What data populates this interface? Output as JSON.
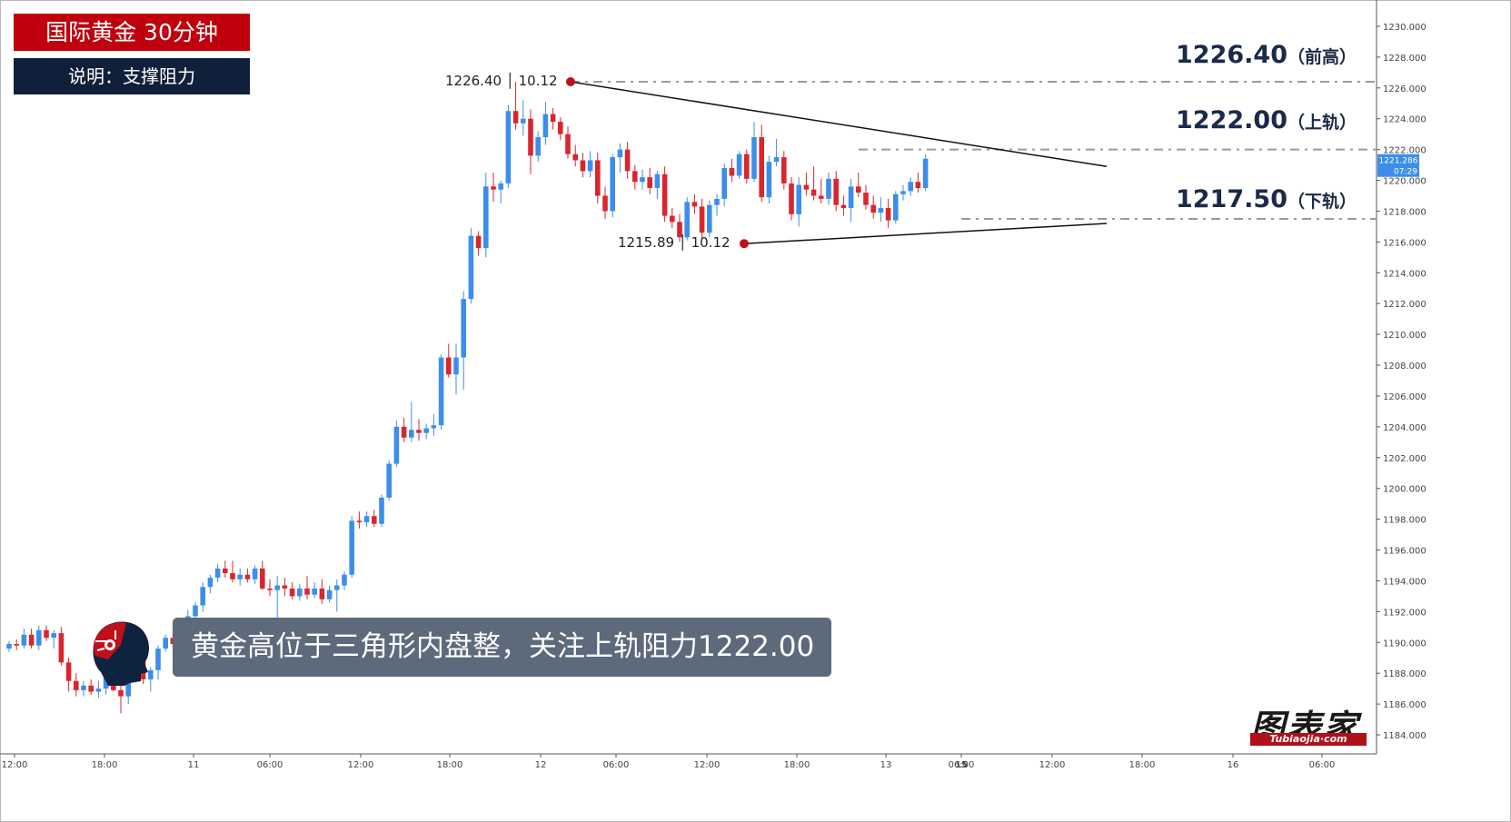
{
  "header": {
    "title": "国际黄金 30分钟",
    "subtitle": "说明：支撑阻力"
  },
  "levels": [
    {
      "price": "1226.40",
      "tag": "（前高）",
      "value": 1226.4
    },
    {
      "price": "1222.00",
      "tag": "（上轨）",
      "value": 1222.0
    },
    {
      "price": "1217.50",
      "tag": "（下轨）",
      "value": 1217.5
    }
  ],
  "annotations": {
    "high_point": "1226.40 │ 10.12",
    "low_point": "1215.89 │ 10.12"
  },
  "caption": "黄金高位于三角形内盘整，关注上轨阻力1222.00",
  "brand": {
    "name": "图表家",
    "sub": "Tubiaojia·com"
  },
  "price_tag": {
    "price": "1221.286",
    "countdown": "07:29"
  },
  "colors": {
    "up": "#3d8eea",
    "down": "#d9262e",
    "title_bg": "#c0000c",
    "sub_bg": "#10203b",
    "caption_bg": "#5c6a7b"
  },
  "chart_data": {
    "type": "candlestick",
    "title": "国际黄金 30分钟",
    "ylim": [
      1183,
      1231
    ],
    "y_ticks": [
      "1184.000",
      "1186.000",
      "1188.000",
      "1190.000",
      "1192.000",
      "1194.000",
      "1196.000",
      "1198.000",
      "1200.000",
      "1202.000",
      "1204.000",
      "1206.000",
      "1208.000",
      "1210.000",
      "1212.000",
      "1214.000",
      "1216.000",
      "1218.000",
      "1220.000",
      "1222.000",
      "1224.000",
      "1226.000",
      "1228.000",
      "1230.000"
    ],
    "x_ticks": [
      "12:00",
      "18:00",
      "11",
      "06:00",
      "12:00",
      "18:00",
      "12",
      "06:00",
      "12:00",
      "18:00",
      "13",
      "06:00",
      "15",
      "12:00",
      "18:00",
      "16",
      "06:00"
    ],
    "candles": [
      [
        1189.6,
        1190.1,
        1189.4,
        1189.9
      ],
      [
        1189.9,
        1190.2,
        1189.5,
        1189.8
      ],
      [
        1189.8,
        1190.9,
        1189.6,
        1190.5
      ],
      [
        1190.5,
        1190.9,
        1189.6,
        1189.8
      ],
      [
        1189.8,
        1191.1,
        1189.5,
        1190.8
      ],
      [
        1190.8,
        1191.1,
        1190.1,
        1190.3
      ],
      [
        1190.3,
        1190.8,
        1189.6,
        1190.6
      ],
      [
        1190.6,
        1191.0,
        1188.5,
        1188.7
      ],
      [
        1188.7,
        1189.0,
        1186.8,
        1187.5
      ],
      [
        1187.5,
        1188.0,
        1186.5,
        1186.9
      ],
      [
        1186.9,
        1187.5,
        1186.5,
        1187.2
      ],
      [
        1187.2,
        1187.6,
        1186.6,
        1186.8
      ],
      [
        1186.8,
        1187.5,
        1186.4,
        1187.0
      ],
      [
        1187.0,
        1188.9,
        1186.6,
        1188.5
      ],
      [
        1188.5,
        1190.1,
        1186.8,
        1186.9
      ],
      [
        1186.9,
        1187.4,
        1185.4,
        1186.5
      ],
      [
        1186.5,
        1188.4,
        1186.0,
        1188.2
      ],
      [
        1188.2,
        1189.2,
        1187.5,
        1189.0
      ],
      [
        1189.0,
        1189.5,
        1187.3,
        1187.6
      ],
      [
        1187.6,
        1188.4,
        1186.8,
        1188.2
      ],
      [
        1188.2,
        1189.8,
        1187.6,
        1189.6
      ],
      [
        1189.6,
        1190.5,
        1189.4,
        1190.3
      ],
      [
        1190.3,
        1191.0,
        1189.5,
        1189.9
      ],
      [
        1189.9,
        1191.4,
        1189.6,
        1191.2
      ],
      [
        1191.2,
        1192.1,
        1190.8,
        1191.7
      ],
      [
        1191.7,
        1192.6,
        1191.2,
        1192.4
      ],
      [
        1192.4,
        1193.9,
        1192.0,
        1193.6
      ],
      [
        1193.6,
        1194.4,
        1193.2,
        1194.2
      ],
      [
        1194.2,
        1195.1,
        1193.9,
        1194.8
      ],
      [
        1194.8,
        1195.3,
        1194.2,
        1194.5
      ],
      [
        1194.5,
        1195.3,
        1193.9,
        1194.1
      ],
      [
        1194.1,
        1194.8,
        1193.7,
        1194.4
      ],
      [
        1194.4,
        1194.8,
        1193.9,
        1194.1
      ],
      [
        1194.1,
        1195.0,
        1193.8,
        1194.8
      ],
      [
        1194.8,
        1195.3,
        1193.4,
        1193.5
      ],
      [
        1193.5,
        1194.1,
        1193.0,
        1193.4
      ],
      [
        1193.4,
        1194.3,
        1191.6,
        1193.7
      ],
      [
        1193.7,
        1194.2,
        1193.0,
        1193.5
      ],
      [
        1193.5,
        1193.9,
        1192.8,
        1193.0
      ],
      [
        1193.0,
        1193.8,
        1192.7,
        1193.5
      ],
      [
        1193.5,
        1194.3,
        1192.8,
        1193.1
      ],
      [
        1193.1,
        1193.9,
        1192.9,
        1193.5
      ],
      [
        1193.5,
        1194.1,
        1192.5,
        1192.8
      ],
      [
        1192.8,
        1193.7,
        1192.6,
        1193.4
      ],
      [
        1193.4,
        1194.1,
        1192.0,
        1193.7
      ],
      [
        1193.7,
        1194.6,
        1193.4,
        1194.4
      ],
      [
        1194.4,
        1198.2,
        1194.2,
        1197.9
      ],
      [
        1197.9,
        1198.5,
        1197.4,
        1197.8
      ],
      [
        1197.8,
        1198.5,
        1197.5,
        1198.2
      ],
      [
        1198.2,
        1198.6,
        1197.5,
        1197.7
      ],
      [
        1197.7,
        1199.6,
        1197.5,
        1199.4
      ],
      [
        1199.4,
        1201.8,
        1199.2,
        1201.6
      ],
      [
        1201.6,
        1204.4,
        1201.4,
        1204.0
      ],
      [
        1204.0,
        1204.6,
        1203.0,
        1203.3
      ],
      [
        1203.3,
        1205.6,
        1203.0,
        1203.8
      ],
      [
        1203.8,
        1204.5,
        1203.1,
        1203.6
      ],
      [
        1203.6,
        1204.2,
        1203.2,
        1203.9
      ],
      [
        1203.9,
        1204.8,
        1203.4,
        1204.1
      ],
      [
        1204.1,
        1208.7,
        1203.8,
        1208.5
      ],
      [
        1208.5,
        1209.4,
        1207.2,
        1207.4
      ],
      [
        1207.4,
        1209.4,
        1206.1,
        1208.5
      ],
      [
        1208.5,
        1212.8,
        1206.4,
        1212.3
      ],
      [
        1212.3,
        1216.9,
        1212.0,
        1216.4
      ],
      [
        1216.4,
        1216.7,
        1215.1,
        1215.6
      ],
      [
        1215.6,
        1220.5,
        1215.0,
        1219.6
      ],
      [
        1219.6,
        1220.5,
        1218.6,
        1219.4
      ],
      [
        1219.4,
        1220.0,
        1218.5,
        1219.8
      ],
      [
        1219.8,
        1224.9,
        1219.5,
        1224.5
      ],
      [
        1224.5,
        1226.4,
        1223.3,
        1223.7
      ],
      [
        1223.7,
        1225.2,
        1222.9,
        1224.0
      ],
      [
        1224.0,
        1224.6,
        1220.4,
        1221.6
      ],
      [
        1221.6,
        1223.2,
        1221.2,
        1222.8
      ],
      [
        1222.8,
        1225.1,
        1222.3,
        1224.3
      ],
      [
        1224.3,
        1224.7,
        1223.3,
        1223.8
      ],
      [
        1223.8,
        1224.1,
        1222.6,
        1223.0
      ],
      [
        1223.0,
        1223.5,
        1221.4,
        1221.7
      ],
      [
        1221.7,
        1222.3,
        1220.9,
        1221.3
      ],
      [
        1221.3,
        1221.8,
        1220.2,
        1220.6
      ],
      [
        1220.6,
        1221.9,
        1220.2,
        1221.3
      ],
      [
        1221.3,
        1221.8,
        1218.5,
        1219.0
      ],
      [
        1219.0,
        1219.6,
        1217.5,
        1218.0
      ],
      [
        1218.0,
        1221.7,
        1217.6,
        1221.5
      ],
      [
        1221.5,
        1222.4,
        1220.5,
        1222.0
      ],
      [
        1222.0,
        1222.5,
        1220.1,
        1220.6
      ],
      [
        1220.6,
        1221.0,
        1219.4,
        1219.9
      ],
      [
        1219.9,
        1220.7,
        1219.4,
        1220.2
      ],
      [
        1220.2,
        1220.8,
        1219.1,
        1219.5
      ],
      [
        1219.5,
        1220.6,
        1218.8,
        1220.4
      ],
      [
        1220.4,
        1220.9,
        1217.3,
        1217.7
      ],
      [
        1217.7,
        1218.2,
        1216.9,
        1217.3
      ],
      [
        1217.3,
        1217.8,
        1216.0,
        1216.3
      ],
      [
        1216.3,
        1218.9,
        1216.1,
        1218.6
      ],
      [
        1218.6,
        1219.1,
        1217.8,
        1218.3
      ],
      [
        1218.3,
        1218.8,
        1216.2,
        1216.6
      ],
      [
        1216.6,
        1218.7,
        1216.3,
        1218.4
      ],
      [
        1218.4,
        1219.1,
        1217.7,
        1218.8
      ],
      [
        1218.8,
        1221.1,
        1218.3,
        1220.8
      ],
      [
        1220.8,
        1221.4,
        1219.9,
        1220.3
      ],
      [
        1220.3,
        1221.9,
        1220.1,
        1221.7
      ],
      [
        1221.7,
        1222.0,
        1219.8,
        1220.1
      ],
      [
        1220.1,
        1223.8,
        1219.9,
        1222.8
      ],
      [
        1222.8,
        1223.6,
        1218.6,
        1218.9
      ],
      [
        1218.9,
        1221.6,
        1218.5,
        1221.2
      ],
      [
        1221.2,
        1222.7,
        1220.9,
        1221.5
      ],
      [
        1221.5,
        1221.9,
        1219.4,
        1219.8
      ],
      [
        1219.8,
        1220.2,
        1217.4,
        1217.8
      ],
      [
        1217.8,
        1220.2,
        1217.0,
        1219.7
      ],
      [
        1219.7,
        1220.5,
        1219.0,
        1219.4
      ],
      [
        1219.4,
        1220.9,
        1218.7,
        1219.0
      ],
      [
        1219.0,
        1220.1,
        1218.5,
        1218.8
      ],
      [
        1218.8,
        1220.5,
        1218.4,
        1220.1
      ],
      [
        1220.1,
        1220.6,
        1218.0,
        1218.4
      ],
      [
        1218.4,
        1219.0,
        1217.7,
        1218.2
      ],
      [
        1218.2,
        1220.1,
        1217.3,
        1219.6
      ],
      [
        1219.6,
        1220.5,
        1218.9,
        1219.2
      ],
      [
        1219.2,
        1219.7,
        1218.1,
        1218.4
      ],
      [
        1218.4,
        1219.0,
        1217.5,
        1217.9
      ],
      [
        1217.9,
        1218.9,
        1217.3,
        1218.2
      ],
      [
        1218.2,
        1218.8,
        1216.9,
        1217.4
      ],
      [
        1217.4,
        1219.3,
        1217.2,
        1219.1
      ],
      [
        1219.1,
        1219.7,
        1218.7,
        1219.3
      ],
      [
        1219.3,
        1220.2,
        1219.0,
        1219.9
      ],
      [
        1219.9,
        1220.5,
        1219.2,
        1219.5
      ],
      [
        1219.5,
        1221.7,
        1219.3,
        1221.4
      ]
    ],
    "trendlines": [
      {
        "name": "upper",
        "from": [
          1226.4
        ],
        "to": [
          1220.9
        ]
      },
      {
        "name": "lower",
        "from": [
          1215.89
        ],
        "to": [
          1217.2
        ]
      }
    ]
  }
}
